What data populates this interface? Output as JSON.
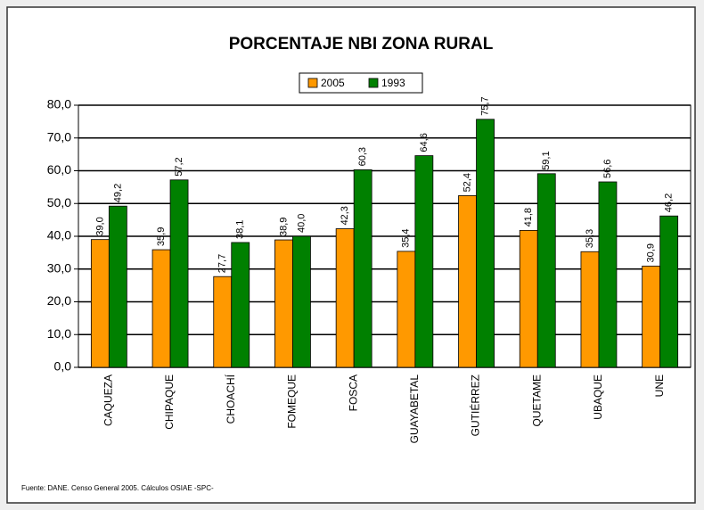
{
  "chart_data": {
    "type": "bar",
    "title": "PORCENTAJE NBI ZONA RURAL",
    "categories": [
      "CAQUEZA",
      "CHIPAQUE",
      "CHOACHÍ",
      "FOMEQUE",
      "FOSCA",
      "GUAYABETAL",
      "GUTIÉRREZ",
      "QUETAME",
      "UBAQUE",
      "UNE"
    ],
    "series": [
      {
        "name": "2005",
        "color": "#ff9900",
        "values": [
          39.0,
          35.9,
          27.7,
          38.9,
          42.3,
          35.4,
          52.4,
          41.8,
          35.3,
          30.9
        ],
        "value_labels": [
          "39,0",
          "35,9",
          "27,7",
          "38,9",
          "42,3",
          "35,4",
          "52,4",
          "41,8",
          "35,3",
          "30,9"
        ]
      },
      {
        "name": "1993",
        "color": "#008000",
        "values": [
          49.2,
          57.2,
          38.1,
          40.0,
          60.3,
          64.6,
          75.7,
          59.1,
          56.6,
          46.2
        ],
        "value_labels": [
          "49,2",
          "57,2",
          "38,1",
          "40,0",
          "60,3",
          "64,6",
          "75,7",
          "59,1",
          "56,6",
          "46,2"
        ]
      }
    ],
    "ylim": [
      0,
      80
    ],
    "yticks": [
      {
        "value": 0,
        "label": "0,0"
      },
      {
        "value": 10,
        "label": "10,0"
      },
      {
        "value": 20,
        "label": "20,0"
      },
      {
        "value": 30,
        "label": "30,0"
      },
      {
        "value": 40,
        "label": "40,0"
      },
      {
        "value": 50,
        "label": "50,0"
      },
      {
        "value": 60,
        "label": "60,0"
      },
      {
        "value": 70,
        "label": "70,0"
      },
      {
        "value": 80,
        "label": "80,0"
      }
    ],
    "grid": true,
    "legend": "top",
    "source": "Fuente: DANE. Censo General 2005. Cálculos OSIAE -SPC-"
  }
}
